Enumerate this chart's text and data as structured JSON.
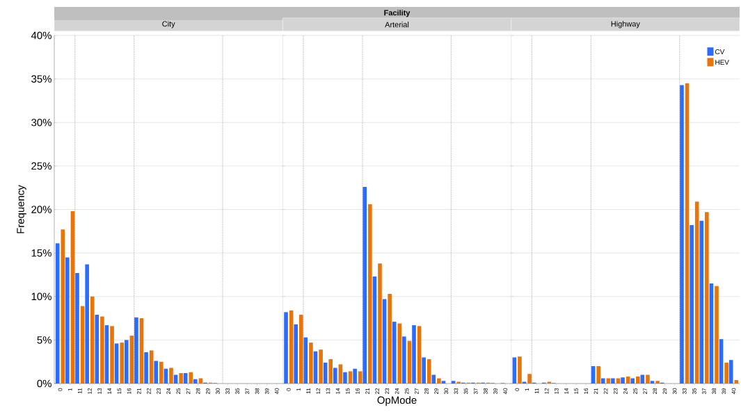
{
  "chart_data": [
    {
      "type": "bar",
      "title": "City",
      "ylabel": "Frequency",
      "annotations": [
        "Facility"
      ],
      "categories": [
        "0",
        "1",
        "11",
        "12",
        "13",
        "14",
        "15",
        "16",
        "21",
        "22",
        "23",
        "24",
        "25",
        "27",
        "28",
        "29",
        "30",
        "33",
        "35",
        "37",
        "38",
        "39",
        "40"
      ],
      "series": [
        {
          "color": "#2b6cff",
          "values": [
            16.1,
            14.5,
            12.7,
            13.7,
            7.9,
            6.7,
            4.6,
            5.0,
            7.6,
            3.6,
            2.6,
            1.7,
            1.0,
            1.2,
            0.5,
            0.1,
            0.05,
            0,
            0,
            0,
            0,
            0,
            0
          ]
        },
        {
          "color": "#e8740c",
          "values": [
            17.7,
            19.8,
            8.9,
            10.0,
            7.7,
            6.6,
            4.7,
            5.5,
            7.5,
            3.8,
            2.5,
            1.8,
            1.2,
            1.3,
            0.6,
            0.1,
            0,
            0,
            0,
            0,
            0,
            0,
            0
          ]
        }
      ],
      "ylim": [
        0,
        40
      ],
      "yticks": [
        {
          "value": 0,
          "label": "0%"
        },
        {
          "value": 5,
          "label": "5%"
        },
        {
          "value": 10,
          "label": "10%"
        },
        {
          "value": 15,
          "label": "15%"
        },
        {
          "value": 20,
          "label": "20%"
        },
        {
          "value": 25,
          "label": "25%"
        },
        {
          "value": 30,
          "label": "30%"
        },
        {
          "value": 35,
          "label": "35%"
        },
        {
          "value": 40,
          "label": "40%"
        }
      ],
      "grid": "y"
    },
    {
      "type": "bar",
      "title": "Arterial",
      "xlabel": "OpMode",
      "categories": [
        "0",
        "1",
        "11",
        "12",
        "13",
        "14",
        "15",
        "16",
        "21",
        "22",
        "23",
        "24",
        "25",
        "27",
        "28",
        "29",
        "30",
        "33",
        "35",
        "37",
        "38",
        "39",
        "40"
      ],
      "series": [
        {
          "color": "#2b6cff",
          "values": [
            8.2,
            6.8,
            5.3,
            3.7,
            2.4,
            1.8,
            1.3,
            1.7,
            22.6,
            12.3,
            9.7,
            7.1,
            5.4,
            6.7,
            3.0,
            1.0,
            0.3,
            0.3,
            0.1,
            0.1,
            0.1,
            0.05,
            0.05
          ]
        },
        {
          "color": "#e8740c",
          "values": [
            8.4,
            7.9,
            4.7,
            3.9,
            2.8,
            2.2,
            1.4,
            1.4,
            20.6,
            13.8,
            10.3,
            6.9,
            4.9,
            6.6,
            2.8,
            0.6,
            0,
            0.2,
            0.1,
            0.1,
            0.1,
            0,
            0
          ]
        }
      ],
      "ylim": [
        0,
        40
      ],
      "yticks": [
        {
          "value": 0,
          "label": null
        },
        {
          "value": 5,
          "label": null
        },
        {
          "value": 10,
          "label": null
        },
        {
          "value": 15,
          "label": null
        },
        {
          "value": 20,
          "label": null
        },
        {
          "value": 25,
          "label": null
        },
        {
          "value": 30,
          "label": null
        },
        {
          "value": 35,
          "label": null
        },
        {
          "value": 40,
          "label": null
        }
      ],
      "grid": "y",
      "tick_labels": "x"
    },
    {
      "type": "bar",
      "title": "Highway",
      "categories": [
        "0",
        "1",
        "11",
        "12",
        "13",
        "14",
        "15",
        "16",
        "21",
        "22",
        "23",
        "24",
        "25",
        "27",
        "28",
        "29",
        "30",
        "33",
        "35",
        "37",
        "38",
        "39",
        "40"
      ],
      "series": [
        {
          "name": "CV",
          "color": "#2b6cff",
          "values": [
            3.0,
            0.2,
            0.1,
            0.1,
            0.05,
            0,
            0,
            0,
            2.0,
            0.6,
            0.6,
            0.7,
            0.6,
            1.0,
            0.3,
            0.1,
            0,
            34.3,
            18.2,
            18.7,
            11.5,
            5.1,
            2.7
          ]
        },
        {
          "name": "HEV",
          "color": "#e8740c",
          "values": [
            3.1,
            1.1,
            0,
            0.2,
            0,
            0,
            0,
            0,
            2.0,
            0.6,
            0.6,
            0.8,
            0.8,
            1.0,
            0.3,
            0,
            0,
            34.5,
            20.9,
            19.7,
            11.2,
            2.4,
            0.4
          ]
        }
      ],
      "ylim": [
        0,
        40
      ],
      "yticks": [
        {
          "value": 0,
          "label": null
        },
        {
          "value": 5,
          "label": null
        },
        {
          "value": 10,
          "label": null
        },
        {
          "value": 15,
          "label": null
        },
        {
          "value": 20,
          "label": null
        },
        {
          "value": 25,
          "label": null
        },
        {
          "value": 30,
          "label": null
        },
        {
          "value": 35,
          "label": null
        },
        {
          "value": 40,
          "label": null
        }
      ],
      "grid": "y",
      "tick_labels": "x",
      "legend": "top right"
    }
  ]
}
